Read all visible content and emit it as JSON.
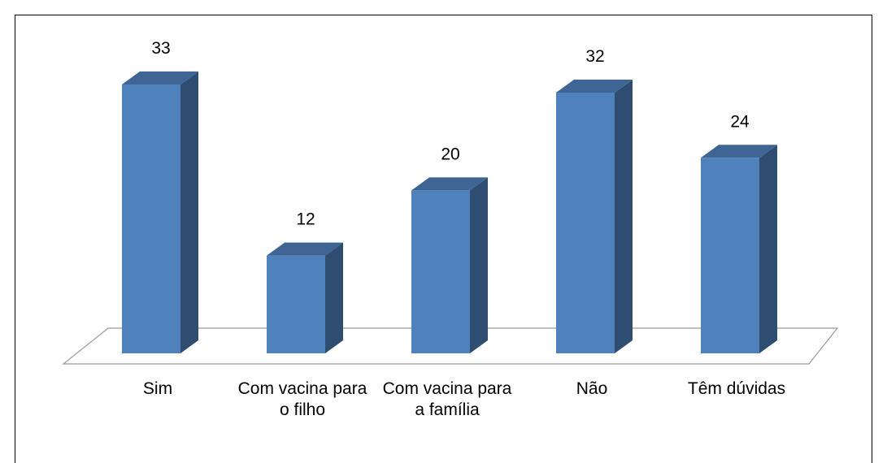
{
  "chart_data": {
    "type": "bar3d",
    "categories": [
      "Sim",
      "Com vacina para o filho",
      "Com vacina para a família",
      "Não",
      "Têm dúvidas"
    ],
    "values": [
      33,
      12,
      20,
      32,
      24
    ],
    "color": "#4f81bd"
  }
}
